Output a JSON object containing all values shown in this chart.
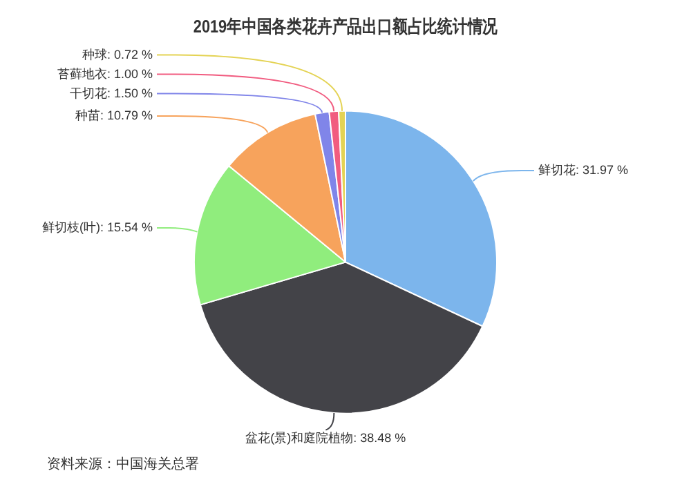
{
  "chart_data": {
    "type": "pie",
    "title": "2019年中国各类花卉产品出口额占比统计情况",
    "categories": [
      "鲜切花",
      "盆花(景)和庭院植物",
      "鲜切枝(叶)",
      "种苗",
      "干切花",
      "苔藓地衣",
      "种球"
    ],
    "values": [
      31.97,
      38.48,
      15.54,
      10.79,
      1.5,
      1.0,
      0.72
    ],
    "value_labels": [
      "31.97 %",
      "38.48 %",
      "15.54 %",
      "10.79 %",
      "1.50 %",
      "1.00 %",
      "0.72 %"
    ],
    "colors": [
      "#7cb5ec",
      "#434348",
      "#90ed7d",
      "#f7a35c",
      "#8085e9",
      "#f15c80",
      "#e4d354"
    ],
    "legend": false,
    "annotations": [
      "资料来源：中国海关总署"
    ]
  }
}
